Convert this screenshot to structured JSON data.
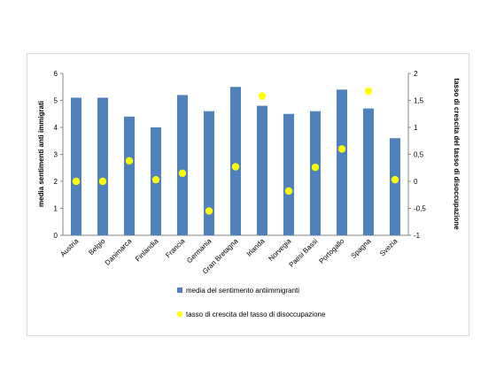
{
  "chart_data": {
    "type": "bar",
    "categories": [
      "Austria",
      "Belgio",
      "Danimarca",
      "Finlandia",
      "Francia",
      "Germania",
      "Gran Bretagna",
      "Irlanda",
      "Norvegia",
      "Paesi Bassi",
      "Portogallo",
      "Spagna",
      "Svezia"
    ],
    "series": [
      {
        "name": "media del sentimento antiimmigranti",
        "type": "bar",
        "axis": "left",
        "color": "#4f81bd",
        "values": [
          5.1,
          5.1,
          4.4,
          4.0,
          5.2,
          4.6,
          5.5,
          4.8,
          4.5,
          4.6,
          5.4,
          4.7,
          3.6
        ]
      },
      {
        "name": "tasso di crescita del tasso di disoccupazione",
        "type": "scatter",
        "axis": "right",
        "color": "#ffff00",
        "values": [
          0.0,
          0.0,
          0.38,
          0.03,
          0.15,
          -0.55,
          0.27,
          1.58,
          -0.18,
          0.26,
          0.6,
          1.67,
          0.03
        ]
      }
    ],
    "ylabel": "media sentimenti anti immigrati",
    "y2label": "tasso di crescita del tasso di disoccupazione",
    "ylim": [
      0,
      6
    ],
    "y2lim": [
      -1,
      2
    ],
    "yticks": [
      "0",
      "1",
      "2",
      "3",
      "4",
      "5",
      "6"
    ],
    "y2ticks": [
      "-1",
      "-0,5",
      "0",
      "0,5",
      "1",
      "1,5",
      "2"
    ],
    "grid": false,
    "legend_position": "bottom"
  }
}
